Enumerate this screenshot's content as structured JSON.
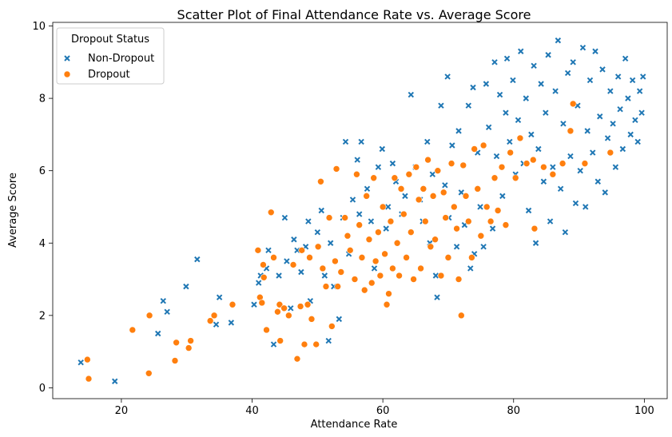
{
  "chart_data": {
    "type": "scatter",
    "title": "Scatter Plot of Final Attendance Rate vs. Average Score",
    "xlabel": "Attendance Rate",
    "ylabel": "Average Score",
    "xlim": [
      9.5,
      103.5
    ],
    "ylim": [
      -0.3,
      10.1
    ],
    "xticks": [
      20,
      40,
      60,
      80,
      100
    ],
    "yticks": [
      0,
      2,
      4,
      6,
      8,
      10
    ],
    "grid": false,
    "legend": {
      "title": "Dropout Status",
      "placement": "top-left",
      "entries": [
        "Non-Dropout",
        "Dropout"
      ]
    },
    "colors": {
      "Non-Dropout": "#1f77b4",
      "Dropout": "#ff7f0e"
    },
    "series": [
      {
        "name": "Non-Dropout",
        "marker": "x",
        "points": [
          [
            13.8,
            0.7
          ],
          [
            19.0,
            0.18
          ],
          [
            25.6,
            1.5
          ],
          [
            26.4,
            2.4
          ],
          [
            27.0,
            2.1
          ],
          [
            29.9,
            2.8
          ],
          [
            31.6,
            3.55
          ],
          [
            34.5,
            1.75
          ],
          [
            35.0,
            2.5
          ],
          [
            36.8,
            1.8
          ],
          [
            40.3,
            2.3
          ],
          [
            41.0,
            2.9
          ],
          [
            41.3,
            3.1
          ],
          [
            42.2,
            3.3
          ],
          [
            42.5,
            3.8
          ],
          [
            43.3,
            1.2
          ],
          [
            44.1,
            3.1
          ],
          [
            45.0,
            4.7
          ],
          [
            45.3,
            3.5
          ],
          [
            45.9,
            2.2
          ],
          [
            46.4,
            4.1
          ],
          [
            46.9,
            3.8
          ],
          [
            47.5,
            3.2
          ],
          [
            48.2,
            3.9
          ],
          [
            48.6,
            4.6
          ],
          [
            48.9,
            2.4
          ],
          [
            50.0,
            4.3
          ],
          [
            50.6,
            4.9
          ],
          [
            51.1,
            3.1
          ],
          [
            51.7,
            1.3
          ],
          [
            52.0,
            4.0
          ],
          [
            52.5,
            2.8
          ],
          [
            53.3,
            1.9
          ],
          [
            53.9,
            4.7
          ],
          [
            54.3,
            6.8
          ],
          [
            54.8,
            3.7
          ],
          [
            55.4,
            5.2
          ],
          [
            56.1,
            6.3
          ],
          [
            56.4,
            4.8
          ],
          [
            56.7,
            6.8
          ],
          [
            57.6,
            5.5
          ],
          [
            58.2,
            4.6
          ],
          [
            58.7,
            3.3
          ],
          [
            59.3,
            6.1
          ],
          [
            59.9,
            6.6
          ],
          [
            60.5,
            4.4
          ],
          [
            60.8,
            5.0
          ],
          [
            61.5,
            6.2
          ],
          [
            62.0,
            5.7
          ],
          [
            62.9,
            4.8
          ],
          [
            63.4,
            5.3
          ],
          [
            64.3,
            8.1
          ],
          [
            65.0,
            6.1
          ],
          [
            65.7,
            5.2
          ],
          [
            66.1,
            4.6
          ],
          [
            66.8,
            6.8
          ],
          [
            67.2,
            4.0
          ],
          [
            67.6,
            5.9
          ],
          [
            68.1,
            3.1
          ],
          [
            68.3,
            2.5
          ],
          [
            68.9,
            7.8
          ],
          [
            69.5,
            5.6
          ],
          [
            69.9,
            8.6
          ],
          [
            70.1,
            4.7
          ],
          [
            70.6,
            6.7
          ],
          [
            71.3,
            3.9
          ],
          [
            71.6,
            7.1
          ],
          [
            72.0,
            5.4
          ],
          [
            72.5,
            4.5
          ],
          [
            73.1,
            7.8
          ],
          [
            73.4,
            3.3
          ],
          [
            73.8,
            8.3
          ],
          [
            74.0,
            3.7
          ],
          [
            74.5,
            6.5
          ],
          [
            74.9,
            5.0
          ],
          [
            75.4,
            3.9
          ],
          [
            75.8,
            8.4
          ],
          [
            76.2,
            7.2
          ],
          [
            76.8,
            4.4
          ],
          [
            77.1,
            9.0
          ],
          [
            77.4,
            6.4
          ],
          [
            77.9,
            8.1
          ],
          [
            78.3,
            5.3
          ],
          [
            78.8,
            7.6
          ],
          [
            79.0,
            9.1
          ],
          [
            79.4,
            6.8
          ],
          [
            79.9,
            8.5
          ],
          [
            80.3,
            5.9
          ],
          [
            80.7,
            7.4
          ],
          [
            81.1,
            9.3
          ],
          [
            81.5,
            6.2
          ],
          [
            81.9,
            8.0
          ],
          [
            82.3,
            4.9
          ],
          [
            82.7,
            7.0
          ],
          [
            83.1,
            8.9
          ],
          [
            83.4,
            4.0
          ],
          [
            83.8,
            6.6
          ],
          [
            84.2,
            8.4
          ],
          [
            84.6,
            5.7
          ],
          [
            84.9,
            7.6
          ],
          [
            85.3,
            9.2
          ],
          [
            85.6,
            4.6
          ],
          [
            86.0,
            6.1
          ],
          [
            86.4,
            8.2
          ],
          [
            86.8,
            9.6
          ],
          [
            87.2,
            5.5
          ],
          [
            87.6,
            7.3
          ],
          [
            87.9,
            4.3
          ],
          [
            88.3,
            8.7
          ],
          [
            88.7,
            6.4
          ],
          [
            89.1,
            9.0
          ],
          [
            89.5,
            5.1
          ],
          [
            89.8,
            7.8
          ],
          [
            90.2,
            6.0
          ],
          [
            90.6,
            9.4
          ],
          [
            91.0,
            5.0
          ],
          [
            91.3,
            7.1
          ],
          [
            91.7,
            8.5
          ],
          [
            92.1,
            6.5
          ],
          [
            92.5,
            9.3
          ],
          [
            92.9,
            5.7
          ],
          [
            93.2,
            7.5
          ],
          [
            93.6,
            8.8
          ],
          [
            94.0,
            5.4
          ],
          [
            94.4,
            6.9
          ],
          [
            94.8,
            8.2
          ],
          [
            95.2,
            7.3
          ],
          [
            95.6,
            6.1
          ],
          [
            96.0,
            8.6
          ],
          [
            96.3,
            7.7
          ],
          [
            96.7,
            6.6
          ],
          [
            97.1,
            9.1
          ],
          [
            97.5,
            8.0
          ],
          [
            97.9,
            7.0
          ],
          [
            98.2,
            8.5
          ],
          [
            98.6,
            7.4
          ],
          [
            99.0,
            6.8
          ],
          [
            99.3,
            8.2
          ],
          [
            99.6,
            7.6
          ],
          [
            99.8,
            8.6
          ]
        ]
      },
      {
        "name": "Dropout",
        "marker": "o",
        "points": [
          [
            14.8,
            0.78
          ],
          [
            15.0,
            0.25
          ],
          [
            21.7,
            1.6
          ],
          [
            24.2,
            0.4
          ],
          [
            24.3,
            2.0
          ],
          [
            28.2,
            0.75
          ],
          [
            28.4,
            1.25
          ],
          [
            30.3,
            1.1
          ],
          [
            30.6,
            1.3
          ],
          [
            33.6,
            1.85
          ],
          [
            34.2,
            2.0
          ],
          [
            37.0,
            2.3
          ],
          [
            40.9,
            3.8
          ],
          [
            41.2,
            2.5
          ],
          [
            41.5,
            2.35
          ],
          [
            41.7,
            3.4
          ],
          [
            41.8,
            3.05
          ],
          [
            42.2,
            1.6
          ],
          [
            42.9,
            4.85
          ],
          [
            43.3,
            3.6
          ],
          [
            43.9,
            2.1
          ],
          [
            44.2,
            2.3
          ],
          [
            44.3,
            1.3
          ],
          [
            44.9,
            2.2
          ],
          [
            45.6,
            2.0
          ],
          [
            46.3,
            3.4
          ],
          [
            46.9,
            0.8
          ],
          [
            47.4,
            2.25
          ],
          [
            47.6,
            3.8
          ],
          [
            48.0,
            1.2
          ],
          [
            48.5,
            2.3
          ],
          [
            48.8,
            3.6
          ],
          [
            49.1,
            1.9
          ],
          [
            49.8,
            1.2
          ],
          [
            50.1,
            3.9
          ],
          [
            50.5,
            5.7
          ],
          [
            50.8,
            3.3
          ],
          [
            51.3,
            2.8
          ],
          [
            51.8,
            4.7
          ],
          [
            52.2,
            1.7
          ],
          [
            52.7,
            3.5
          ],
          [
            52.9,
            6.05
          ],
          [
            53.1,
            2.8
          ],
          [
            53.6,
            3.2
          ],
          [
            54.2,
            4.7
          ],
          [
            54.6,
            4.2
          ],
          [
            55.0,
            3.8
          ],
          [
            55.7,
            3.0
          ],
          [
            56.0,
            5.9
          ],
          [
            56.4,
            4.5
          ],
          [
            56.8,
            3.6
          ],
          [
            57.2,
            2.7
          ],
          [
            57.5,
            5.3
          ],
          [
            57.9,
            4.1
          ],
          [
            58.3,
            2.9
          ],
          [
            58.6,
            5.8
          ],
          [
            58.9,
            3.5
          ],
          [
            59.3,
            4.3
          ],
          [
            59.6,
            3.1
          ],
          [
            60.0,
            5.0
          ],
          [
            60.3,
            3.7
          ],
          [
            60.6,
            2.3
          ],
          [
            60.9,
            2.6
          ],
          [
            61.2,
            4.6
          ],
          [
            61.5,
            3.3
          ],
          [
            61.8,
            5.8
          ],
          [
            62.2,
            4.0
          ],
          [
            62.5,
            3.1
          ],
          [
            62.8,
            5.5
          ],
          [
            63.2,
            4.8
          ],
          [
            63.6,
            3.6
          ],
          [
            64.0,
            5.9
          ],
          [
            64.3,
            4.3
          ],
          [
            64.7,
            3.0
          ],
          [
            65.1,
            6.1
          ],
          [
            65.5,
            5.2
          ],
          [
            65.8,
            3.3
          ],
          [
            66.2,
            5.5
          ],
          [
            66.5,
            4.6
          ],
          [
            66.9,
            6.3
          ],
          [
            67.3,
            3.9
          ],
          [
            67.7,
            5.3
          ],
          [
            68.0,
            4.1
          ],
          [
            68.4,
            6.0
          ],
          [
            68.9,
            3.1
          ],
          [
            69.3,
            5.4
          ],
          [
            69.6,
            4.7
          ],
          [
            70.0,
            3.6
          ],
          [
            70.5,
            6.2
          ],
          [
            70.9,
            5.0
          ],
          [
            71.3,
            4.4
          ],
          [
            71.6,
            3.0
          ],
          [
            72.0,
            2.0
          ],
          [
            72.3,
            6.15
          ],
          [
            72.7,
            5.3
          ],
          [
            73.1,
            4.6
          ],
          [
            73.6,
            3.6
          ],
          [
            74.0,
            6.6
          ],
          [
            74.5,
            5.5
          ],
          [
            75.0,
            4.2
          ],
          [
            75.4,
            6.7
          ],
          [
            75.9,
            5.0
          ],
          [
            76.5,
            4.6
          ],
          [
            77.1,
            5.8
          ],
          [
            77.6,
            4.9
          ],
          [
            78.2,
            6.1
          ],
          [
            78.8,
            4.5
          ],
          [
            79.5,
            6.5
          ],
          [
            80.3,
            5.8
          ],
          [
            81.0,
            6.9
          ],
          [
            82.0,
            6.2
          ],
          [
            83.0,
            6.3
          ],
          [
            83.2,
            4.4
          ],
          [
            84.6,
            6.1
          ],
          [
            86.0,
            5.9
          ],
          [
            87.5,
            6.2
          ],
          [
            88.7,
            7.1
          ],
          [
            89.1,
            7.85
          ],
          [
            90.9,
            6.2
          ],
          [
            94.8,
            6.5
          ]
        ]
      }
    ]
  }
}
